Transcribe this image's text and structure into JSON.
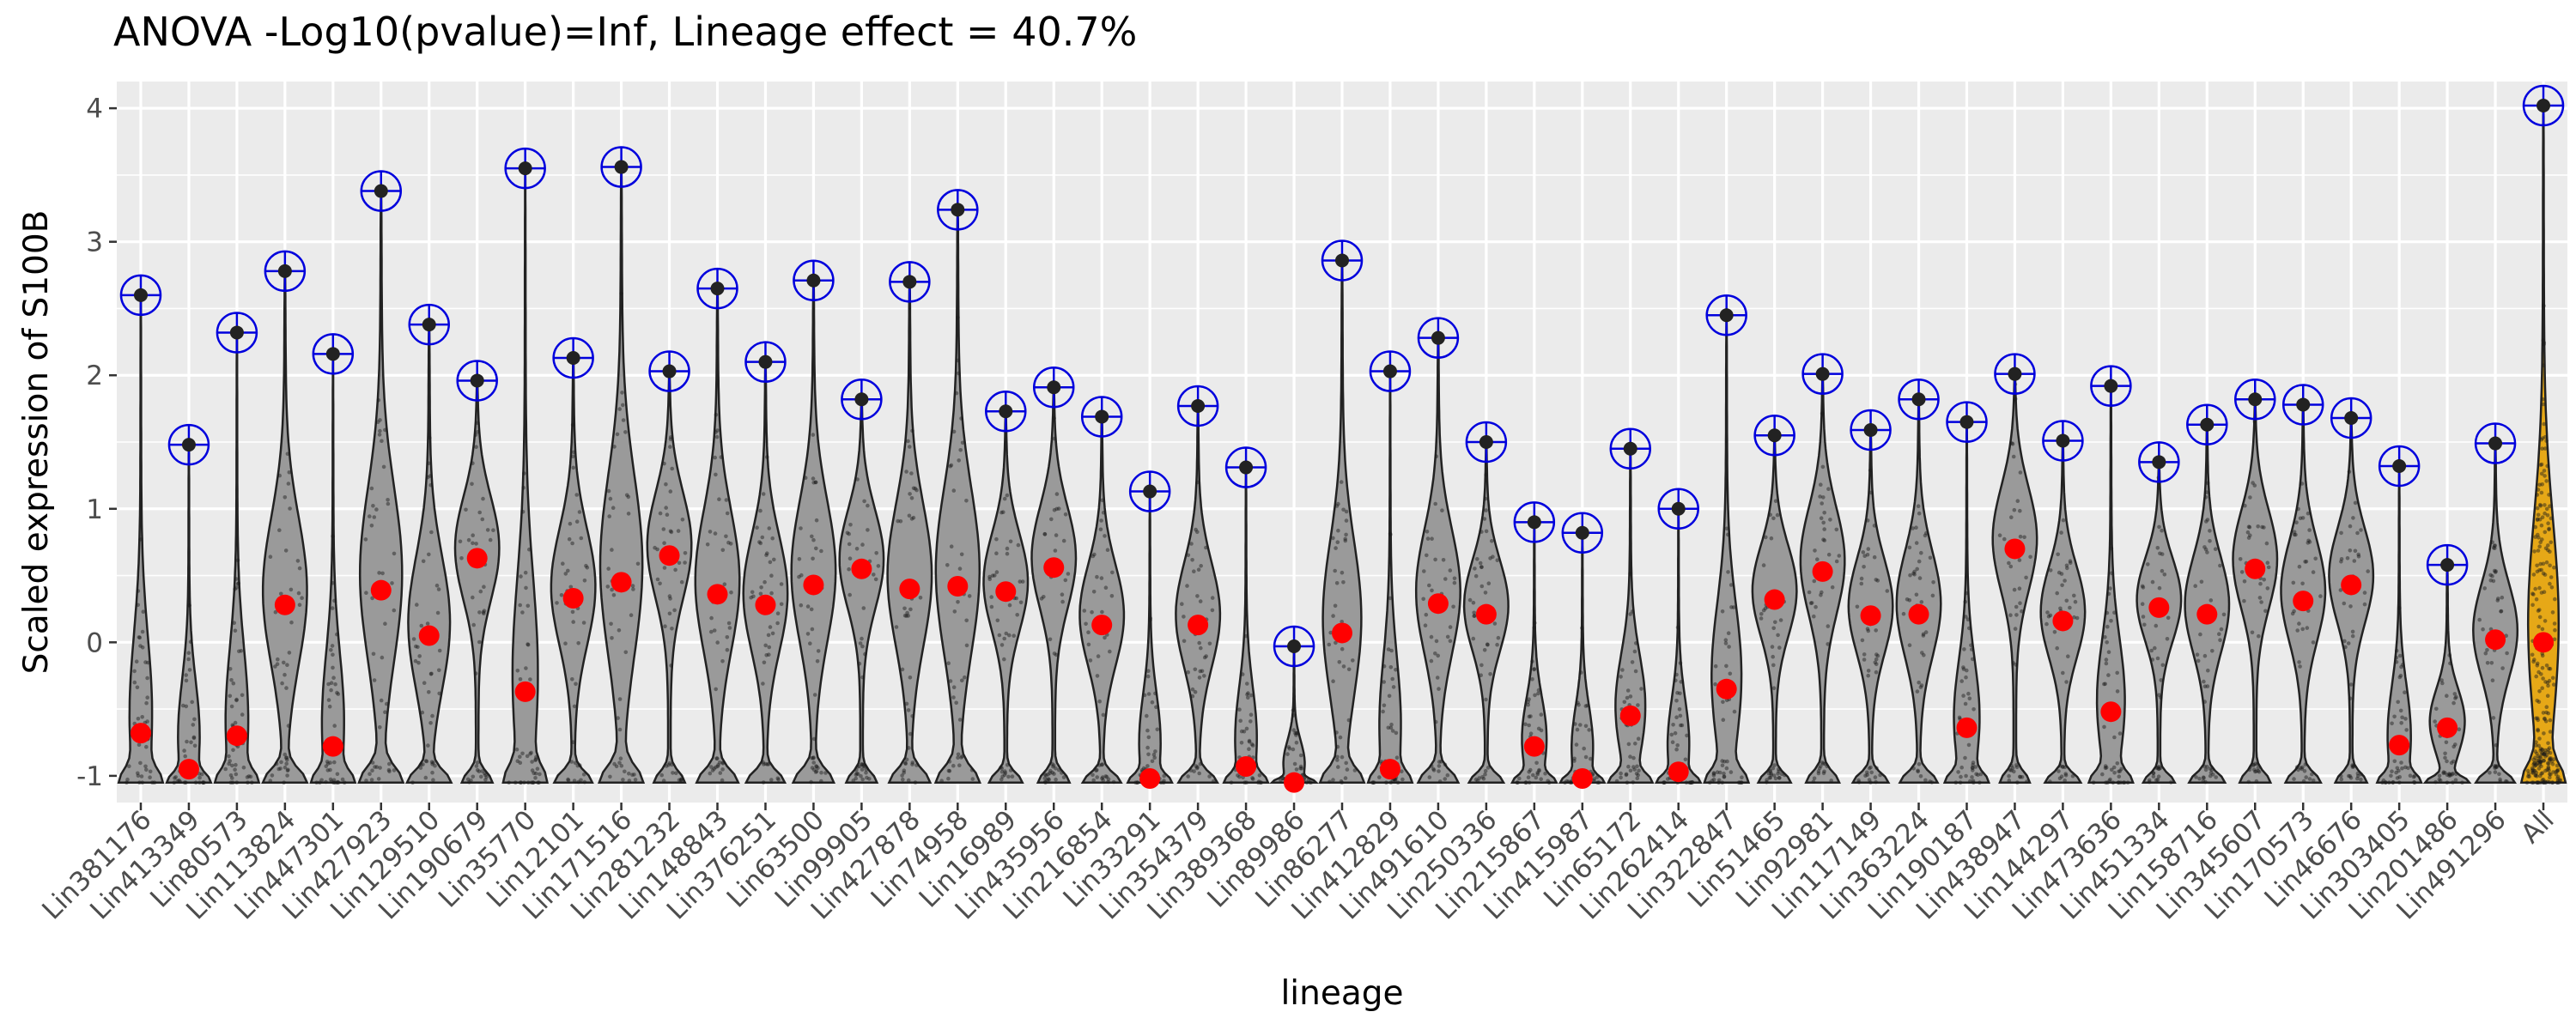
{
  "chart_data": {
    "type": "violin",
    "title": "ANOVA -Log10(pvalue)=Inf, Lineage effect = 40.7%",
    "xlabel": "lineage",
    "ylabel": "Scaled expression of S100B",
    "ylim": [
      -1.2,
      4.2
    ],
    "yticks": [
      -1,
      0,
      1,
      2,
      3,
      4
    ],
    "grid": true,
    "legend": "none",
    "categories": [
      "Lin381176",
      "Lin413349",
      "Lin80573",
      "Lin113824",
      "Lin447301",
      "Lin427923",
      "Lin129510",
      "Lin190679",
      "Lin35770",
      "Lin12101",
      "Lin171516",
      "Lin281232",
      "Lin148843",
      "Lin376251",
      "Lin63500",
      "Lin99905",
      "Lin427878",
      "Lin74958",
      "Lin16989",
      "Lin435956",
      "Lin216854",
      "Lin33291",
      "Lin354379",
      "Lin389368",
      "Lin89986",
      "Lin86277",
      "Lin412829",
      "Lin491610",
      "Lin250336",
      "Lin215867",
      "Lin415987",
      "Lin65172",
      "Lin262414",
      "Lin322847",
      "Lin51465",
      "Lin92981",
      "Lin117149",
      "Lin363224",
      "Lin190187",
      "Lin438947",
      "Lin144297",
      "Lin473636",
      "Lin451334",
      "Lin158716",
      "Lin345607",
      "Lin170573",
      "Lin46676",
      "Lin303405",
      "Lin201486",
      "Lin491296",
      "All"
    ],
    "series": [
      {
        "name": "mean",
        "values": [
          -0.68,
          -0.95,
          -0.7,
          0.28,
          -0.78,
          0.39,
          0.05,
          0.63,
          -0.37,
          0.33,
          0.45,
          0.65,
          0.36,
          0.28,
          0.43,
          0.55,
          0.4,
          0.42,
          0.38,
          0.56,
          0.13,
          -1.02,
          0.13,
          -0.93,
          -1.05,
          0.07,
          -0.95,
          0.29,
          0.21,
          -0.78,
          -1.02,
          -0.55,
          -0.97,
          -0.35,
          0.32,
          0.53,
          0.2,
          0.21,
          -0.64,
          0.7,
          0.16,
          -0.52,
          0.26,
          0.21,
          0.55,
          0.31,
          0.43,
          -0.77,
          -0.64,
          0.02,
          0.0
        ]
      },
      {
        "name": "max",
        "values": [
          2.6,
          1.48,
          2.32,
          2.78,
          2.16,
          3.38,
          2.38,
          1.96,
          3.55,
          2.13,
          3.56,
          2.03,
          2.65,
          2.1,
          2.71,
          1.82,
          2.7,
          3.24,
          1.73,
          1.91,
          1.69,
          1.13,
          1.77,
          1.31,
          -0.03,
          2.86,
          2.03,
          2.28,
          1.5,
          0.9,
          0.82,
          1.45,
          1.0,
          2.45,
          1.55,
          2.01,
          1.59,
          1.82,
          1.65,
          2.01,
          1.51,
          1.92,
          1.35,
          1.63,
          1.82,
          1.78,
          1.68,
          1.32,
          0.58,
          1.49,
          4.02
        ]
      },
      {
        "name": "min",
        "values": [
          -1.05,
          -1.05,
          -1.05,
          -1.05,
          -1.05,
          -1.05,
          -1.05,
          -1.05,
          -1.05,
          -1.05,
          -1.05,
          -1.05,
          -1.05,
          -1.05,
          -1.05,
          -1.05,
          -1.05,
          -1.05,
          -1.05,
          -1.05,
          -1.05,
          -1.05,
          -1.05,
          -1.05,
          -1.05,
          -1.05,
          -1.05,
          -1.05,
          -1.05,
          -1.05,
          -1.05,
          -1.05,
          -1.05,
          -1.05,
          -1.05,
          -1.05,
          -1.05,
          -1.05,
          -1.05,
          -1.05,
          -1.05,
          -1.05,
          -1.05,
          -1.05,
          -1.05,
          -1.05,
          -1.05,
          -1.05,
          -1.05,
          -1.05,
          -1.05
        ]
      }
    ],
    "colors": {
      "panel_bg": "#ebebeb",
      "grid": "#ffffff",
      "violin_fill": "#9a9a9a",
      "all_fill": "#e6a817",
      "mean_point": "#ff0000",
      "max_marker": "#0000dd",
      "points": "#1a1a1a"
    }
  }
}
